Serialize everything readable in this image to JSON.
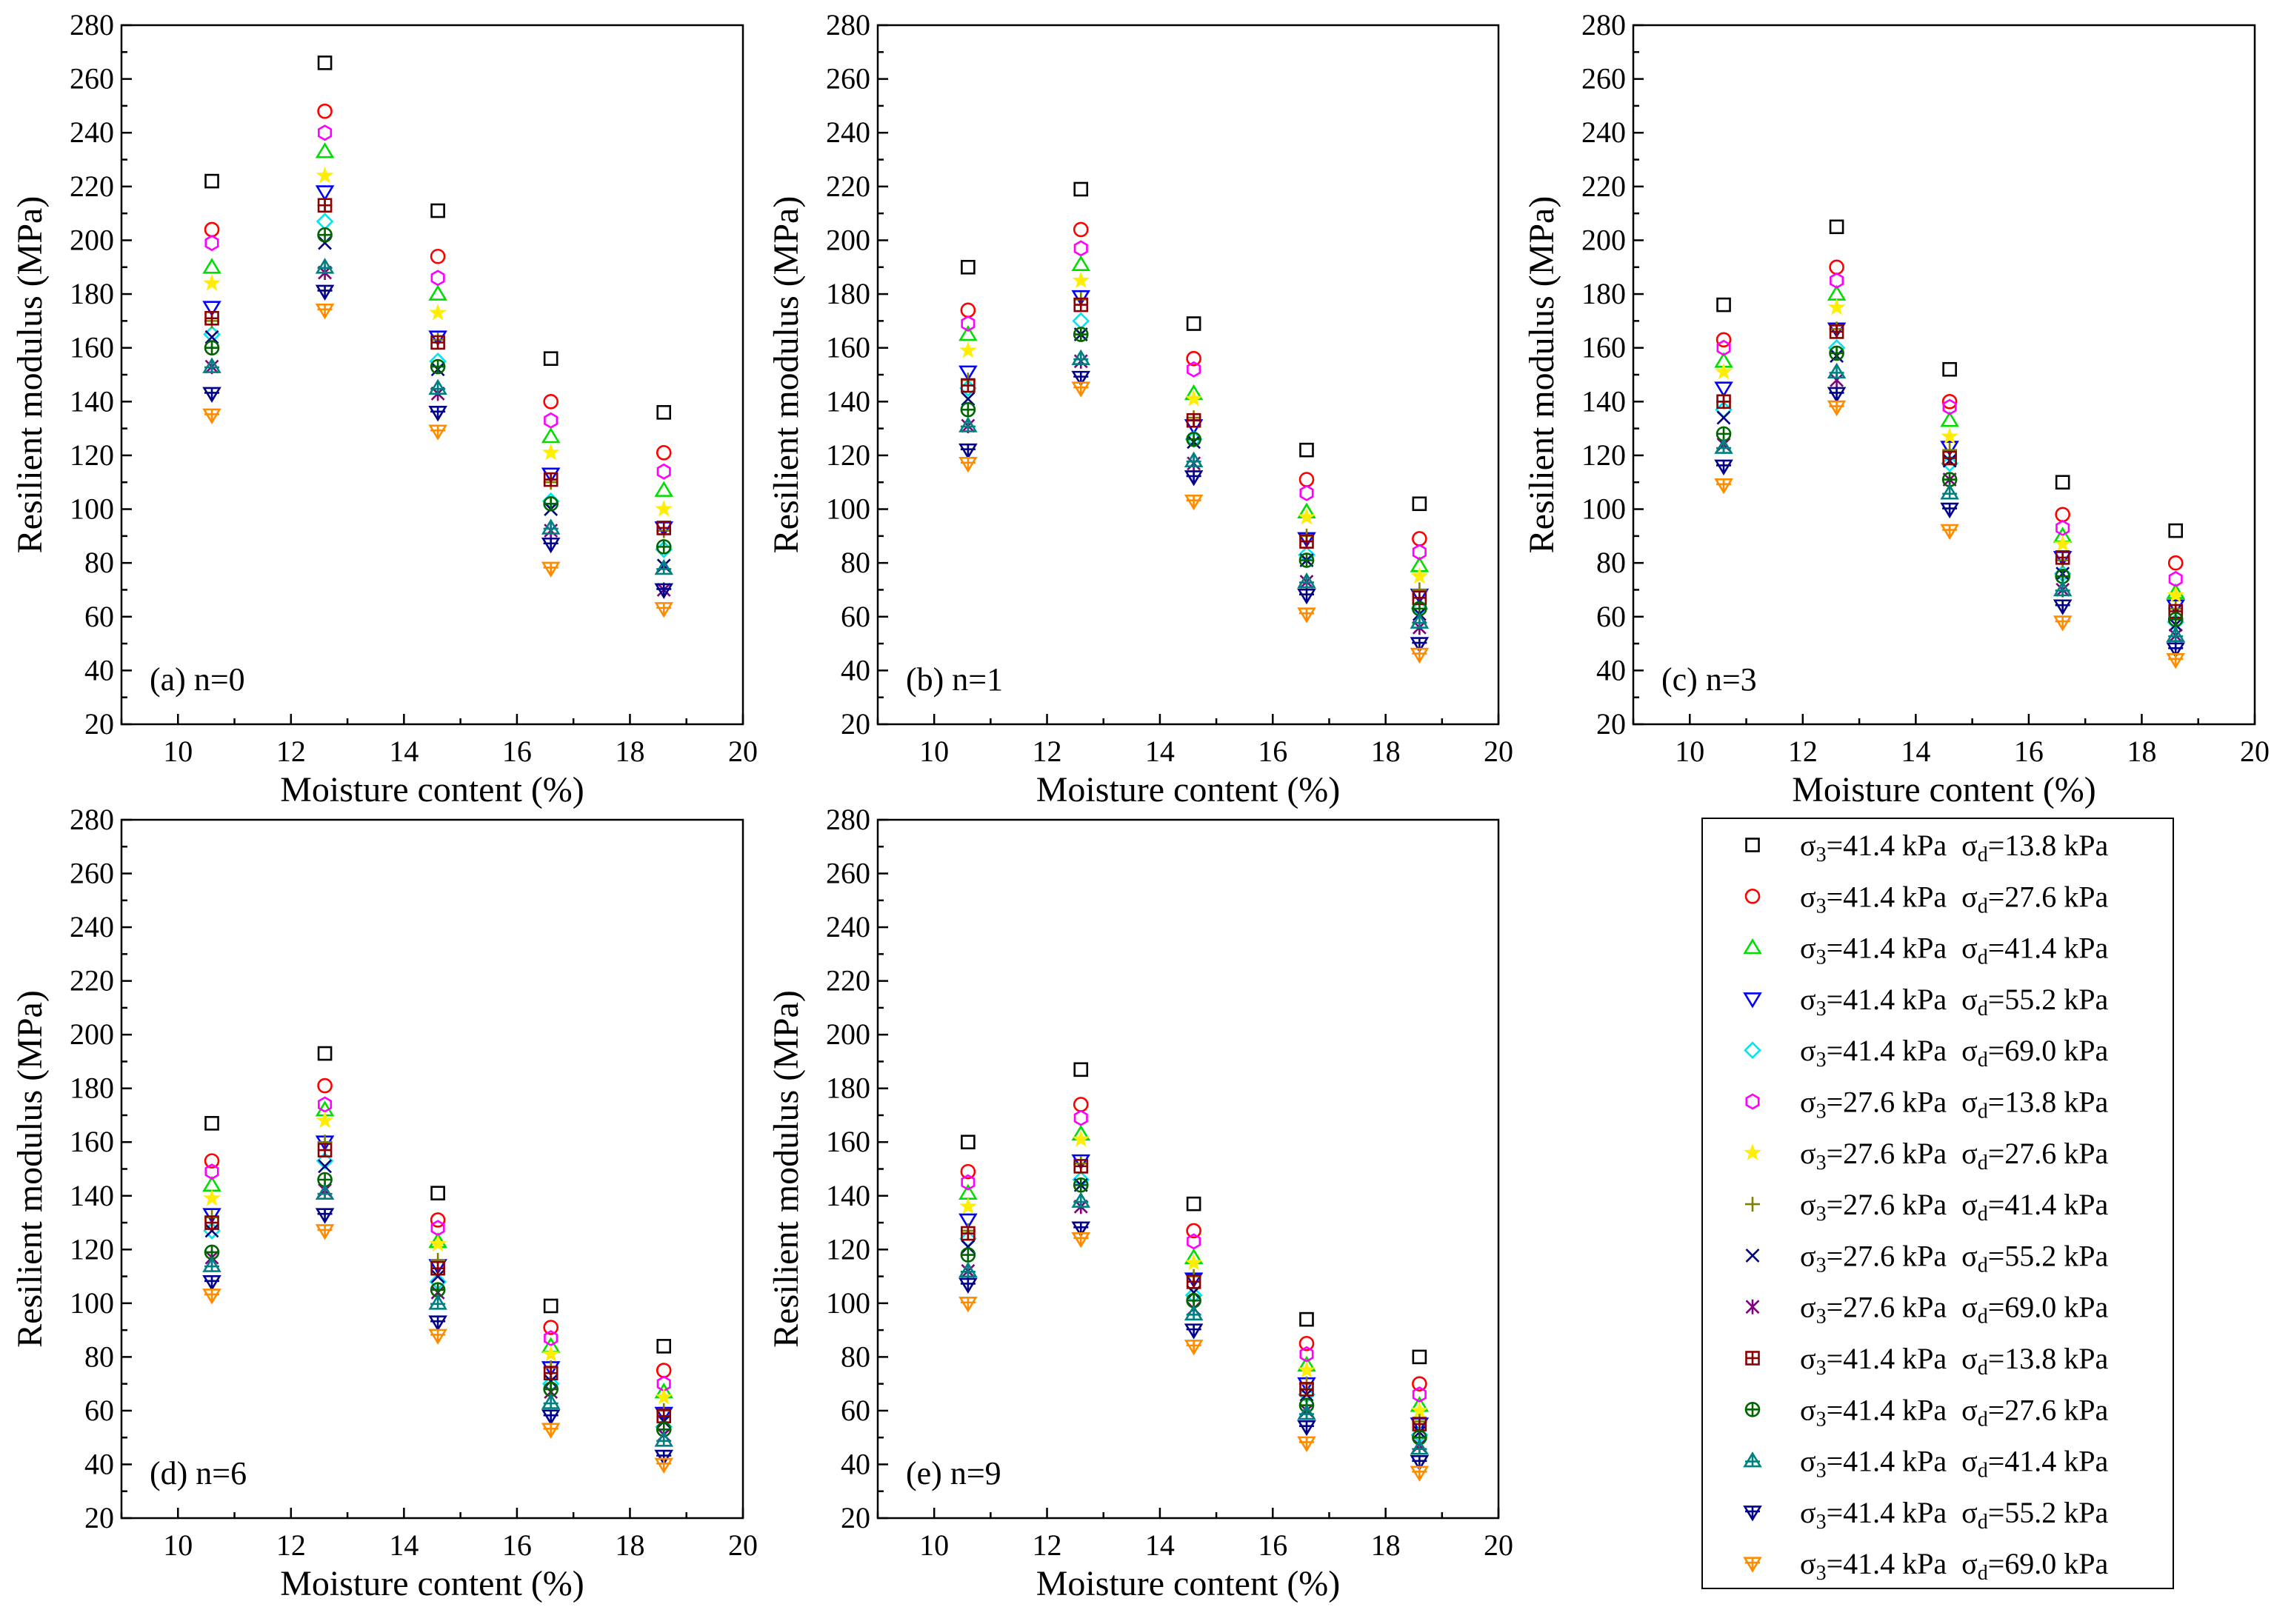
{
  "chart_data": {
    "type": "scatter",
    "xlabel": "Moisture content (%)",
    "ylabel": "Resilient modulus (MPa)",
    "xlim": [
      9,
      20
    ],
    "ylim": [
      20,
      280
    ],
    "x_ticks": [
      10,
      12,
      14,
      16,
      18,
      20
    ],
    "y_ticks": [
      20,
      40,
      60,
      80,
      100,
      120,
      140,
      160,
      180,
      200,
      220,
      240,
      260,
      280
    ],
    "grid": false,
    "legend_position": "bottom-right",
    "x": [
      10.6,
      12.6,
      14.6,
      16.6,
      18.6
    ],
    "series": [
      {
        "sigma3": "41.4",
        "sigmad": "13.8",
        "marker": "square",
        "color": "#000000"
      },
      {
        "sigma3": "41.4",
        "sigmad": "27.6",
        "marker": "circle",
        "color": "#ff0000"
      },
      {
        "sigma3": "41.4",
        "sigmad": "41.4",
        "marker": "triangle-up",
        "color": "#00dd00"
      },
      {
        "sigma3": "41.4",
        "sigmad": "55.2",
        "marker": "triangle-down",
        "color": "#0000ff"
      },
      {
        "sigma3": "41.4",
        "sigmad": "69.0",
        "marker": "diamond",
        "color": "#00e5ee"
      },
      {
        "sigma3": "27.6",
        "sigmad": "13.8",
        "marker": "hexagon",
        "color": "#ff00ff"
      },
      {
        "sigma3": "27.6",
        "sigmad": "27.6",
        "marker": "star",
        "color": "#ffee00"
      },
      {
        "sigma3": "27.6",
        "sigmad": "41.4",
        "marker": "plus",
        "color": "#808000"
      },
      {
        "sigma3": "27.6",
        "sigmad": "55.2",
        "marker": "x",
        "color": "#000080"
      },
      {
        "sigma3": "27.6",
        "sigmad": "69.0",
        "marker": "asterisk",
        "color": "#800080"
      },
      {
        "sigma3": "41.4",
        "sigmad": "13.8",
        "marker": "square-plus",
        "color": "#8b0000"
      },
      {
        "sigma3": "41.4",
        "sigmad": "27.6",
        "marker": "circle-plus",
        "color": "#006400"
      },
      {
        "sigma3": "41.4",
        "sigmad": "41.4",
        "marker": "triangle-up-plus",
        "color": "#008080"
      },
      {
        "sigma3": "41.4",
        "sigmad": "55.2",
        "marker": "triangle-down-plus",
        "color": "#00008b"
      },
      {
        "sigma3": "41.4",
        "sigmad": "69.0",
        "marker": "triangle-down-plus",
        "color": "#ff8c00"
      }
    ],
    "legend": {
      "sigma3_prefix": "σ",
      "sigma3_sub": "3",
      "sigmad_prefix": "σ",
      "sigmad_sub": "d",
      "unit": "kPa"
    },
    "panels": [
      {
        "label": "(a) n=0",
        "values": [
          [
            222,
            266,
            211,
            156,
            136
          ],
          [
            204,
            248,
            194,
            140,
            121
          ],
          [
            190,
            233,
            180,
            127,
            107
          ],
          [
            175,
            218,
            164,
            113,
            93
          ],
          [
            165,
            207,
            155,
            103,
            85
          ],
          [
            199,
            240,
            186,
            133,
            114
          ],
          [
            184,
            224,
            173,
            121,
            100
          ],
          [
            170,
            213,
            163,
            110,
            92
          ],
          [
            164,
            199,
            152,
            100,
            79
          ],
          [
            153,
            188,
            143,
            92,
            70
          ],
          [
            171,
            213,
            162,
            111,
            93
          ],
          [
            160,
            202,
            153,
            102,
            86
          ],
          [
            153,
            190,
            145,
            93,
            78
          ],
          [
            143,
            181,
            136,
            87,
            70
          ],
          [
            135,
            174,
            129,
            78,
            63
          ]
        ]
      },
      {
        "label": "(b) n=1",
        "values": [
          [
            190,
            219,
            169,
            122,
            102
          ],
          [
            174,
            204,
            156,
            111,
            89
          ],
          [
            165,
            191,
            143,
            99,
            79
          ],
          [
            151,
            179,
            131,
            89,
            68
          ],
          [
            145,
            170,
            126,
            83,
            63
          ],
          [
            169,
            197,
            152,
            106,
            84
          ],
          [
            159,
            185,
            141,
            97,
            75
          ],
          [
            148,
            178,
            134,
            90,
            70
          ],
          [
            141,
            165,
            125,
            81,
            61
          ],
          [
            131,
            155,
            117,
            73,
            56
          ],
          [
            146,
            176,
            133,
            88,
            67
          ],
          [
            137,
            165,
            126,
            81,
            63
          ],
          [
            131,
            156,
            118,
            73,
            58
          ],
          [
            122,
            149,
            112,
            68,
            50
          ],
          [
            117,
            145,
            103,
            61,
            46
          ]
        ]
      },
      {
        "label": "(c) n=3",
        "values": [
          [
            176,
            205,
            152,
            110,
            92
          ],
          [
            163,
            190,
            140,
            98,
            80
          ],
          [
            155,
            180,
            133,
            90,
            69
          ],
          [
            145,
            167,
            123,
            82,
            64
          ],
          [
            137,
            160,
            117,
            76,
            58
          ],
          [
            160,
            185,
            138,
            93,
            74
          ],
          [
            151,
            175,
            127,
            87,
            68
          ],
          [
            140,
            167,
            122,
            81,
            63
          ],
          [
            134,
            157,
            118,
            76,
            57
          ],
          [
            124,
            148,
            111,
            70,
            53
          ],
          [
            140,
            166,
            119,
            82,
            62
          ],
          [
            128,
            158,
            111,
            75,
            59
          ],
          [
            123,
            151,
            106,
            70,
            53
          ],
          [
            116,
            143,
            100,
            64,
            48
          ],
          [
            109,
            138,
            92,
            58,
            44
          ]
        ]
      },
      {
        "label": "(d) n=6",
        "values": [
          [
            167,
            193,
            141,
            99,
            84
          ],
          [
            153,
            181,
            131,
            91,
            75
          ],
          [
            144,
            172,
            123,
            84,
            67
          ],
          [
            133,
            160,
            114,
            76,
            59
          ],
          [
            127,
            153,
            108,
            70,
            54
          ],
          [
            149,
            174,
            128,
            87,
            70
          ],
          [
            139,
            168,
            122,
            81,
            65
          ],
          [
            132,
            160,
            116,
            76,
            60
          ],
          [
            127,
            151,
            110,
            71,
            56
          ],
          [
            117,
            142,
            104,
            67,
            51
          ],
          [
            130,
            157,
            113,
            74,
            58
          ],
          [
            119,
            146,
            105,
            68,
            53
          ],
          [
            114,
            141,
            100,
            63,
            49
          ],
          [
            108,
            133,
            93,
            58,
            43
          ],
          [
            103,
            127,
            88,
            53,
            40
          ]
        ]
      },
      {
        "label": "(e) n=9",
        "values": [
          [
            160,
            187,
            137,
            94,
            80
          ],
          [
            149,
            174,
            127,
            85,
            70
          ],
          [
            141,
            163,
            117,
            77,
            62
          ],
          [
            131,
            153,
            109,
            70,
            55
          ],
          [
            124,
            146,
            103,
            66,
            51
          ],
          [
            145,
            169,
            123,
            81,
            66
          ],
          [
            136,
            161,
            115,
            75,
            60
          ],
          [
            127,
            152,
            110,
            70,
            56
          ],
          [
            121,
            144,
            104,
            66,
            52
          ],
          [
            112,
            136,
            98,
            60,
            47
          ],
          [
            126,
            151,
            108,
            68,
            55
          ],
          [
            118,
            144,
            101,
            62,
            50
          ],
          [
            112,
            138,
            96,
            59,
            46
          ],
          [
            107,
            128,
            90,
            54,
            41
          ],
          [
            100,
            124,
            84,
            48,
            37
          ]
        ]
      }
    ]
  }
}
